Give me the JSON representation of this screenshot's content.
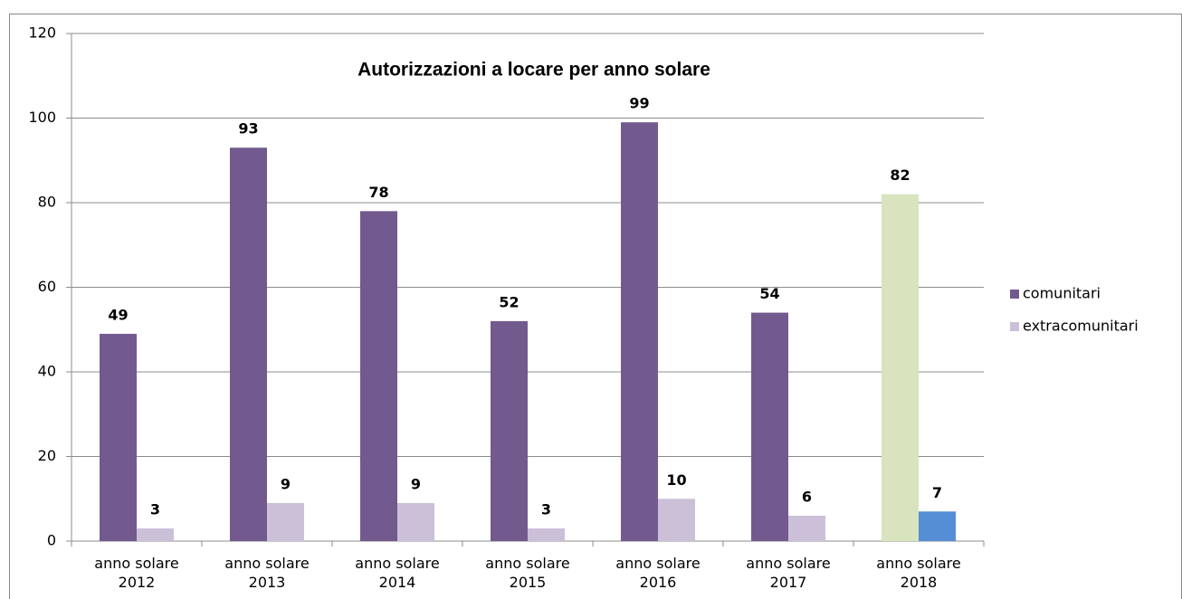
{
  "chart_data": {
    "type": "bar",
    "title": "Autorizzazioni a locare per anno solare",
    "categories": [
      "anno solare 2012",
      "anno solare 2013",
      "anno solare 2014",
      "anno solare 2015",
      "anno solare 2016",
      "anno solare 2017",
      "anno solare 2018"
    ],
    "series": [
      {
        "name": "comunitari",
        "color": "#725a8e",
        "colors": [
          "#725a8e",
          "#725a8e",
          "#725a8e",
          "#725a8e",
          "#725a8e",
          "#725a8e",
          "#d7e4bd"
        ],
        "values": [
          49,
          93,
          78,
          52,
          99,
          54,
          82
        ]
      },
      {
        "name": "extracomunitari",
        "color": "#cbc0d8",
        "colors": [
          "#cbc0d8",
          "#cbc0d8",
          "#cbc0d8",
          "#cbc0d8",
          "#cbc0d8",
          "#cbc0d8",
          "#558ed5"
        ],
        "values": [
          3,
          9,
          9,
          3,
          10,
          6,
          7
        ]
      }
    ],
    "ylim": [
      0,
      120
    ],
    "yticks": [
      0,
      20,
      40,
      60,
      80,
      100,
      120
    ],
    "grid": true,
    "legend": "right"
  }
}
